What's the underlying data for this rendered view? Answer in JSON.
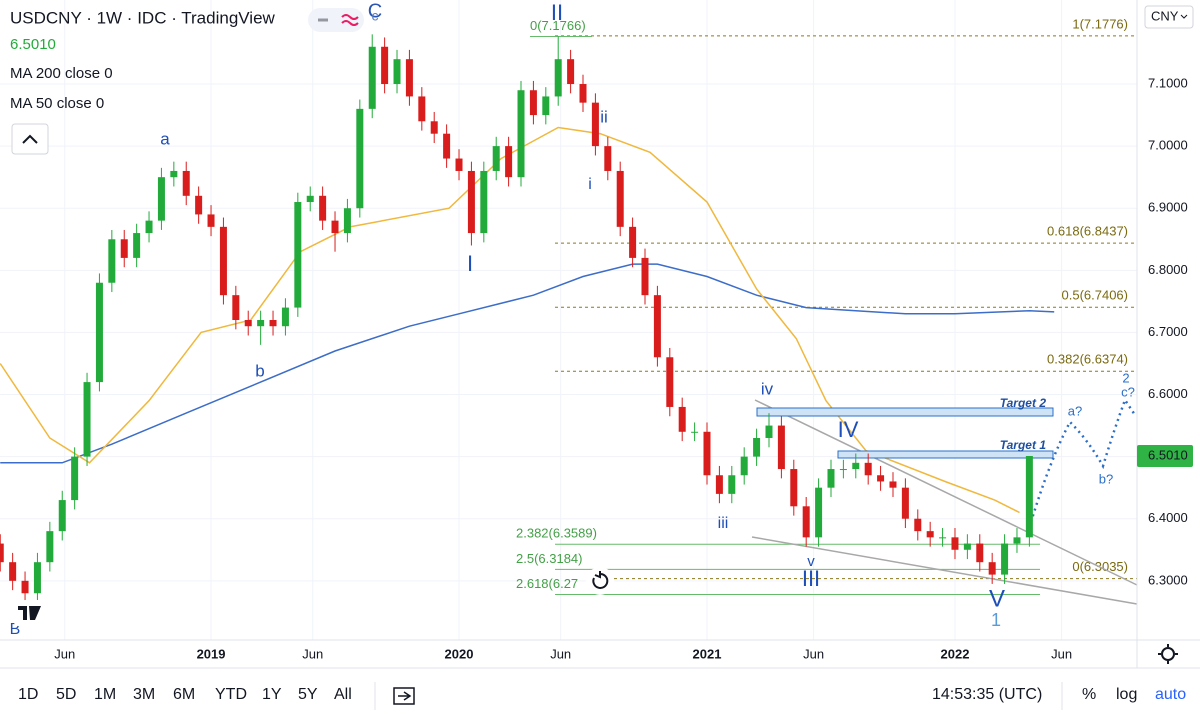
{
  "chart_data": {
    "type": "candlestick",
    "title": "USDCNY · 1W · IDC · TradingView",
    "last_price": {
      "value": 6.501,
      "label": "6.5010"
    },
    "currency": "CNY",
    "x": [
      2018.15,
      2018.2,
      2018.25,
      2018.3,
      2018.35,
      2018.4,
      2018.45,
      2018.5,
      2018.55,
      2018.6,
      2018.65,
      2018.7,
      2018.75,
      2018.8,
      2018.85,
      2018.9,
      2018.95,
      2019.0,
      2019.05,
      2019.1,
      2019.15,
      2019.2,
      2019.25,
      2019.3,
      2019.35,
      2019.4,
      2019.45,
      2019.5,
      2019.55,
      2019.6,
      2019.65,
      2019.7,
      2019.75,
      2019.8,
      2019.85,
      2019.9,
      2019.95,
      2020.0,
      2020.05,
      2020.1,
      2020.15,
      2020.2,
      2020.25,
      2020.3,
      2020.35,
      2020.4,
      2020.45,
      2020.5,
      2020.55,
      2020.6,
      2020.65,
      2020.7,
      2020.75,
      2020.8,
      2020.85,
      2020.9,
      2020.95,
      2021.0,
      2021.05,
      2021.1,
      2021.15,
      2021.2,
      2021.25,
      2021.3,
      2021.35,
      2021.4,
      2021.45,
      2021.5,
      2021.55,
      2021.6,
      2021.65,
      2021.7,
      2021.75,
      2021.8,
      2021.85,
      2021.9,
      2021.95,
      2022.0,
      2022.05,
      2022.1,
      2022.15,
      2022.2,
      2022.25,
      2022.3
    ],
    "open": [
      6.36,
      6.33,
      6.3,
      6.28,
      6.33,
      6.38,
      6.43,
      6.5,
      6.62,
      6.78,
      6.85,
      6.82,
      6.86,
      6.88,
      6.95,
      6.96,
      6.92,
      6.89,
      6.87,
      6.76,
      6.72,
      6.71,
      6.72,
      6.71,
      6.74,
      6.91,
      6.92,
      6.88,
      6.86,
      6.9,
      7.06,
      7.16,
      7.1,
      7.14,
      7.08,
      7.04,
      7.02,
      6.98,
      6.96,
      6.86,
      6.96,
      7.0,
      6.95,
      7.09,
      7.05,
      7.08,
      7.14,
      7.1,
      7.07,
      7.0,
      6.96,
      6.87,
      6.82,
      6.76,
      6.66,
      6.58,
      6.54,
      6.54,
      6.47,
      6.44,
      6.47,
      6.5,
      6.53,
      6.55,
      6.48,
      6.42,
      6.37,
      6.45,
      6.48,
      6.48,
      6.49,
      6.47,
      6.46,
      6.45,
      6.4,
      6.38,
      6.37,
      6.37,
      6.35,
      6.36,
      6.33,
      6.31,
      6.36,
      6.37
    ],
    "high": [
      6.375,
      6.345,
      6.315,
      6.345,
      6.395,
      6.445,
      6.515,
      6.635,
      6.795,
      6.865,
      6.865,
      6.875,
      6.895,
      6.965,
      6.975,
      6.975,
      6.935,
      6.905,
      6.885,
      6.775,
      6.735,
      6.735,
      6.735,
      6.755,
      6.925,
      6.935,
      6.935,
      6.895,
      6.915,
      7.075,
      7.18,
      7.175,
      7.155,
      7.155,
      7.095,
      7.055,
      7.035,
      6.995,
      6.975,
      6.975,
      7.015,
      7.015,
      7.105,
      7.105,
      7.095,
      7.1766,
      7.155,
      7.115,
      7.085,
      7.015,
      6.975,
      6.885,
      6.835,
      6.775,
      6.675,
      6.595,
      6.555,
      6.555,
      6.485,
      6.485,
      6.515,
      6.545,
      6.57,
      6.565,
      6.495,
      6.435,
      6.465,
      6.495,
      6.495,
      6.505,
      6.505,
      6.485,
      6.475,
      6.465,
      6.415,
      6.395,
      6.385,
      6.385,
      6.375,
      6.375,
      6.345,
      6.375,
      6.385,
      6.501
    ],
    "low": [
      6.315,
      6.285,
      6.265,
      6.265,
      6.315,
      6.365,
      6.415,
      6.485,
      6.605,
      6.765,
      6.805,
      6.805,
      6.845,
      6.865,
      6.935,
      6.905,
      6.875,
      6.855,
      6.745,
      6.705,
      6.695,
      6.68,
      6.695,
      6.695,
      6.725,
      6.895,
      6.865,
      6.83,
      6.845,
      6.885,
      7.045,
      7.085,
      7.085,
      7.065,
      7.025,
      7.005,
      6.965,
      6.945,
      6.84,
      6.845,
      6.945,
      6.935,
      6.935,
      7.035,
      7.035,
      7.065,
      7.085,
      7.055,
      6.985,
      6.945,
      6.855,
      6.805,
      6.745,
      6.645,
      6.565,
      6.525,
      6.525,
      6.455,
      6.425,
      6.425,
      6.455,
      6.485,
      6.515,
      6.465,
      6.405,
      6.355,
      6.355,
      6.435,
      6.465,
      6.465,
      6.455,
      6.445,
      6.435,
      6.385,
      6.365,
      6.355,
      6.355,
      6.335,
      6.335,
      6.315,
      6.295,
      6.295,
      6.345,
      6.355
    ],
    "close": [
      6.33,
      6.3,
      6.28,
      6.33,
      6.38,
      6.43,
      6.5,
      6.62,
      6.78,
      6.85,
      6.82,
      6.86,
      6.88,
      6.95,
      6.96,
      6.92,
      6.89,
      6.87,
      6.76,
      6.72,
      6.71,
      6.72,
      6.71,
      6.74,
      6.91,
      6.92,
      6.88,
      6.86,
      6.9,
      7.06,
      7.16,
      7.1,
      7.14,
      7.08,
      7.04,
      7.02,
      6.98,
      6.96,
      6.86,
      6.96,
      7.0,
      6.95,
      7.09,
      7.05,
      7.08,
      7.14,
      7.1,
      7.07,
      7.0,
      6.96,
      6.87,
      6.82,
      6.76,
      6.66,
      6.58,
      6.54,
      6.54,
      6.47,
      6.44,
      6.47,
      6.5,
      6.53,
      6.55,
      6.48,
      6.42,
      6.37,
      6.45,
      6.48,
      6.48,
      6.49,
      6.47,
      6.46,
      6.45,
      6.4,
      6.38,
      6.37,
      6.37,
      6.35,
      6.36,
      6.33,
      6.31,
      6.36,
      6.37,
      6.501
    ],
    "up_color": "#22ab3a",
    "down_color": "#d91c1c",
    "series": [
      {
        "name": "MA 200 close 0",
        "color": "#3c6dc8",
        "x": [
          2018.15,
          2018.4,
          2018.6,
          2018.9,
          2019.2,
          2019.5,
          2019.8,
          2020.0,
          2020.3,
          2020.5,
          2020.7,
          2020.8,
          2021.0,
          2021.2,
          2021.4,
          2021.6,
          2021.8,
          2022.0,
          2022.3,
          2022.4
        ],
        "values": [
          6.49,
          6.49,
          6.52,
          6.57,
          6.62,
          6.67,
          6.71,
          6.73,
          6.76,
          6.79,
          6.81,
          6.81,
          6.79,
          6.76,
          6.74,
          6.735,
          6.73,
          6.73,
          6.735,
          6.733
        ]
      },
      {
        "name": "MA 50 close 0",
        "color": "#f0b83c",
        "x": [
          2018.15,
          2018.35,
          2018.51,
          2018.75,
          2018.96,
          2019.16,
          2019.36,
          2019.56,
          2019.96,
          2020.17,
          2020.4,
          2020.57,
          2020.77,
          2021.0,
          2021.2,
          2021.36,
          2021.48,
          2021.64,
          2021.96,
          2022.16,
          2022.26
        ],
        "values": [
          6.65,
          6.53,
          6.49,
          6.59,
          6.7,
          6.72,
          6.83,
          6.87,
          6.9,
          6.98,
          7.03,
          7.02,
          6.99,
          6.91,
          6.77,
          6.69,
          6.59,
          6.51,
          6.46,
          6.43,
          6.41
        ]
      }
    ],
    "xlim": [
      2018.149,
      2022.734
    ],
    "ylim": [
      6.2047,
      7.2353
    ],
    "xticks": [
      {
        "value": 2018.41,
        "label": "Jun"
      },
      {
        "value": 2019.0,
        "label": "2019"
      },
      {
        "value": 2019.41,
        "label": "Jun"
      },
      {
        "value": 2020.0,
        "label": "2020"
      },
      {
        "value": 2020.41,
        "label": "Jun"
      },
      {
        "value": 2021.0,
        "label": "2021"
      },
      {
        "value": 2021.43,
        "label": "Jun"
      },
      {
        "value": 2022.0,
        "label": "2022"
      },
      {
        "value": 2022.43,
        "label": "Jun"
      }
    ],
    "yticks": [
      {
        "value": 6.3,
        "label": "6.3000"
      },
      {
        "value": 6.4,
        "label": "6.4000"
      },
      {
        "value": 6.5,
        "label": "6.5000"
      },
      {
        "value": 6.6,
        "label": "6.6000"
      },
      {
        "value": 6.7,
        "label": "6.7000"
      },
      {
        "value": 6.8,
        "label": "6.8000"
      },
      {
        "value": 6.9,
        "label": "6.9000"
      },
      {
        "value": 7.0,
        "label": "7.0000"
      },
      {
        "value": 7.1,
        "label": "7.1000"
      }
    ],
    "grid": true,
    "fib_retracement": [
      {
        "value": 7.1776,
        "label": "1(7.1776)"
      },
      {
        "value": 6.8437,
        "label": "0.618(6.8437)"
      },
      {
        "value": 6.7406,
        "label": "0.5(6.7406)"
      },
      {
        "value": 6.6374,
        "label": "0.382(6.6374)"
      },
      {
        "value": 6.3035,
        "label": "0(6.3035)"
      }
    ],
    "fib_extension": [
      {
        "value": 7.1766,
        "label": "0(7.1766)"
      },
      {
        "value": 6.3589,
        "label": "2.382(6.3589)"
      },
      {
        "value": 6.3184,
        "label": "2.5(6.3184)"
      },
      {
        "value": 6.2779,
        "label": "2.618(6.27"
      }
    ],
    "targets": [
      "Target 2",
      "Target 1"
    ],
    "annotations": [
      "C",
      "c",
      "II",
      "a",
      "b",
      "B",
      "I",
      "ii",
      "i",
      "iii",
      "iv",
      "v",
      "III",
      "IV",
      "V",
      "1",
      "a?",
      "b?",
      "c?",
      "2"
    ]
  },
  "toolbar": {
    "ranges": [
      "1D",
      "5D",
      "1M",
      "3M",
      "6M",
      "YTD",
      "1Y",
      "5Y",
      "All"
    ],
    "time": "14:53:35 (UTC)",
    "options": [
      "%",
      "log",
      "auto"
    ]
  }
}
